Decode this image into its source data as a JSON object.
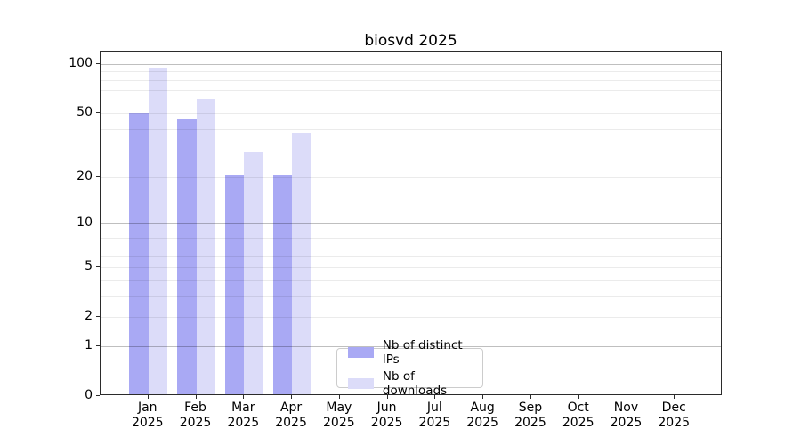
{
  "figure": {
    "title": "biosvd 2025"
  },
  "chart_data": {
    "type": "bar",
    "title": "biosvd 2025",
    "categories": [
      "Jan 2025",
      "Feb 2025",
      "Mar 2025",
      "Apr 2025",
      "May 2025",
      "Jun 2025",
      "Jul 2025",
      "Aug 2025",
      "Sep 2025",
      "Oct 2025",
      "Nov 2025",
      "Dec 2025"
    ],
    "x_tick_months": [
      "Jan",
      "Feb",
      "Mar",
      "Apr",
      "May",
      "Jun",
      "Jul",
      "Aug",
      "Sep",
      "Oct",
      "Nov",
      "Dec"
    ],
    "x_tick_year": "2025",
    "series": [
      {
        "name": "Nb of distinct IPs",
        "color": "#a9a9f4",
        "values": [
          49,
          45,
          20,
          20,
          null,
          null,
          null,
          null,
          null,
          null,
          null,
          null
        ]
      },
      {
        "name": "Nb of downloads",
        "color": "#dcdcf9",
        "values": [
          93,
          60,
          28,
          37,
          null,
          null,
          null,
          null,
          null,
          null,
          null,
          null
        ]
      }
    ],
    "y_axis": {
      "scale": "log10(value+1)",
      "labeled_ticks": [
        0,
        1,
        2,
        5,
        10,
        20,
        50,
        100
      ],
      "decade_gridlines": [
        1,
        10,
        100
      ],
      "minor_gridlines": [
        2,
        3,
        4,
        5,
        6,
        7,
        8,
        9,
        20,
        30,
        40,
        50,
        60,
        70,
        80,
        90
      ],
      "top_value": 119
    },
    "grid": true,
    "legend_position": "inside-bottom-center",
    "colors": {
      "background": "#ffffff",
      "axis": "#2b2b2b",
      "text": "#000000",
      "major_grid": "rgba(0,0,0,0.25)",
      "minor_grid": "rgba(0,0,0,0.08)"
    }
  }
}
